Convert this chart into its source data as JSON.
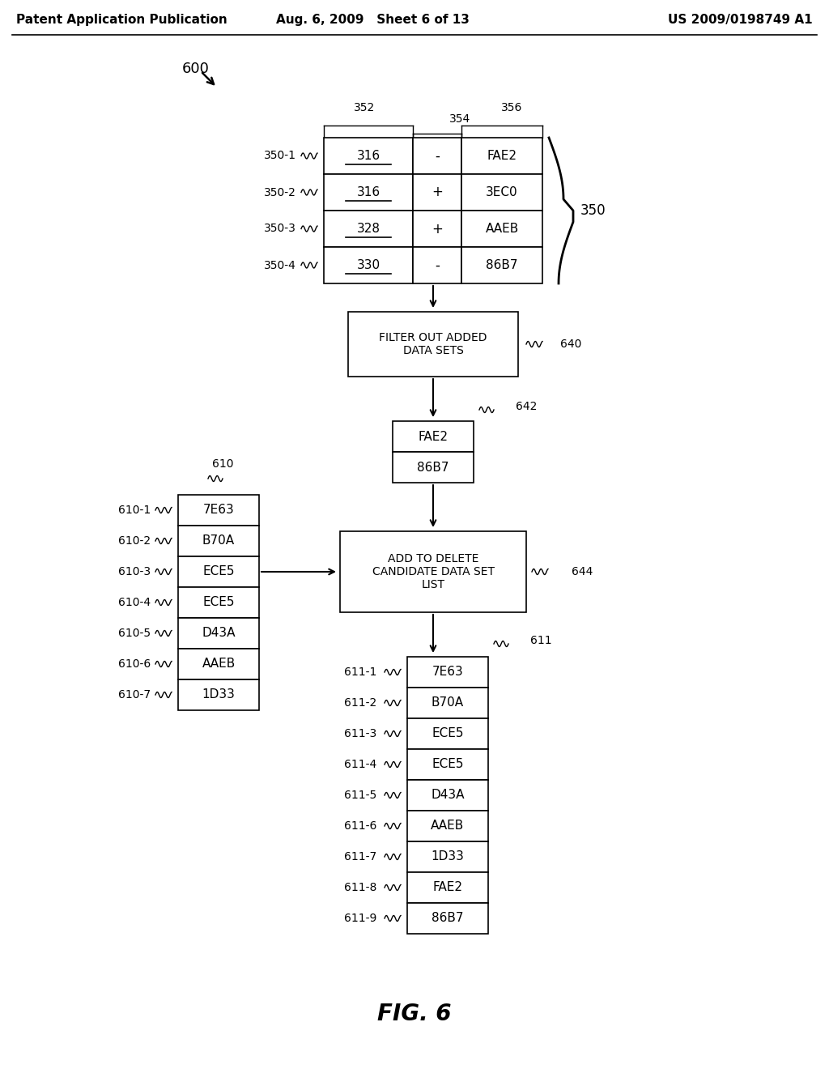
{
  "header_left": "Patent Application Publication",
  "header_mid": "Aug. 6, 2009   Sheet 6 of 13",
  "header_right": "US 2009/0198749 A1",
  "fig_label": "FIG. 6",
  "table_350": {
    "label": "350",
    "col_labels": [
      "352",
      "354",
      "356"
    ],
    "rows": [
      {
        "id": "350-1",
        "c1": "316",
        "c2": "-",
        "c3": "FAE2"
      },
      {
        "id": "350-2",
        "c1": "316",
        "c2": "+",
        "c3": "3EC0"
      },
      {
        "id": "350-3",
        "c1": "328",
        "c2": "+",
        "c3": "AAEB"
      },
      {
        "id": "350-4",
        "c1": "330",
        "c2": "-",
        "c3": "86B7"
      }
    ]
  },
  "box_640": {
    "label": "640",
    "text": "FILTER OUT ADDED\nDATA SETS"
  },
  "box_642": {
    "label": "642",
    "items": [
      "FAE2",
      "86B7"
    ]
  },
  "box_644": {
    "label": "644",
    "text": "ADD TO DELETE\nCANDIDATE DATA SET\nLIST"
  },
  "table_610": {
    "label": "610",
    "rows": [
      {
        "id": "610-1",
        "val": "7E63"
      },
      {
        "id": "610-2",
        "val": "B70A"
      },
      {
        "id": "610-3",
        "val": "ECE5"
      },
      {
        "id": "610-4",
        "val": "ECE5"
      },
      {
        "id": "610-5",
        "val": "D43A"
      },
      {
        "id": "610-6",
        "val": "AAEB"
      },
      {
        "id": "610-7",
        "val": "1D33"
      }
    ]
  },
  "table_611": {
    "label": "611",
    "rows": [
      {
        "id": "611-1",
        "val": "7E63"
      },
      {
        "id": "611-2",
        "val": "B70A"
      },
      {
        "id": "611-3",
        "val": "ECE5"
      },
      {
        "id": "611-4",
        "val": "ECE5"
      },
      {
        "id": "611-5",
        "val": "D43A"
      },
      {
        "id": "611-6",
        "val": "AAEB"
      },
      {
        "id": "611-7",
        "val": "1D33"
      },
      {
        "id": "611-8",
        "val": "FAE2"
      },
      {
        "id": "611-9",
        "val": "86B7"
      }
    ]
  }
}
